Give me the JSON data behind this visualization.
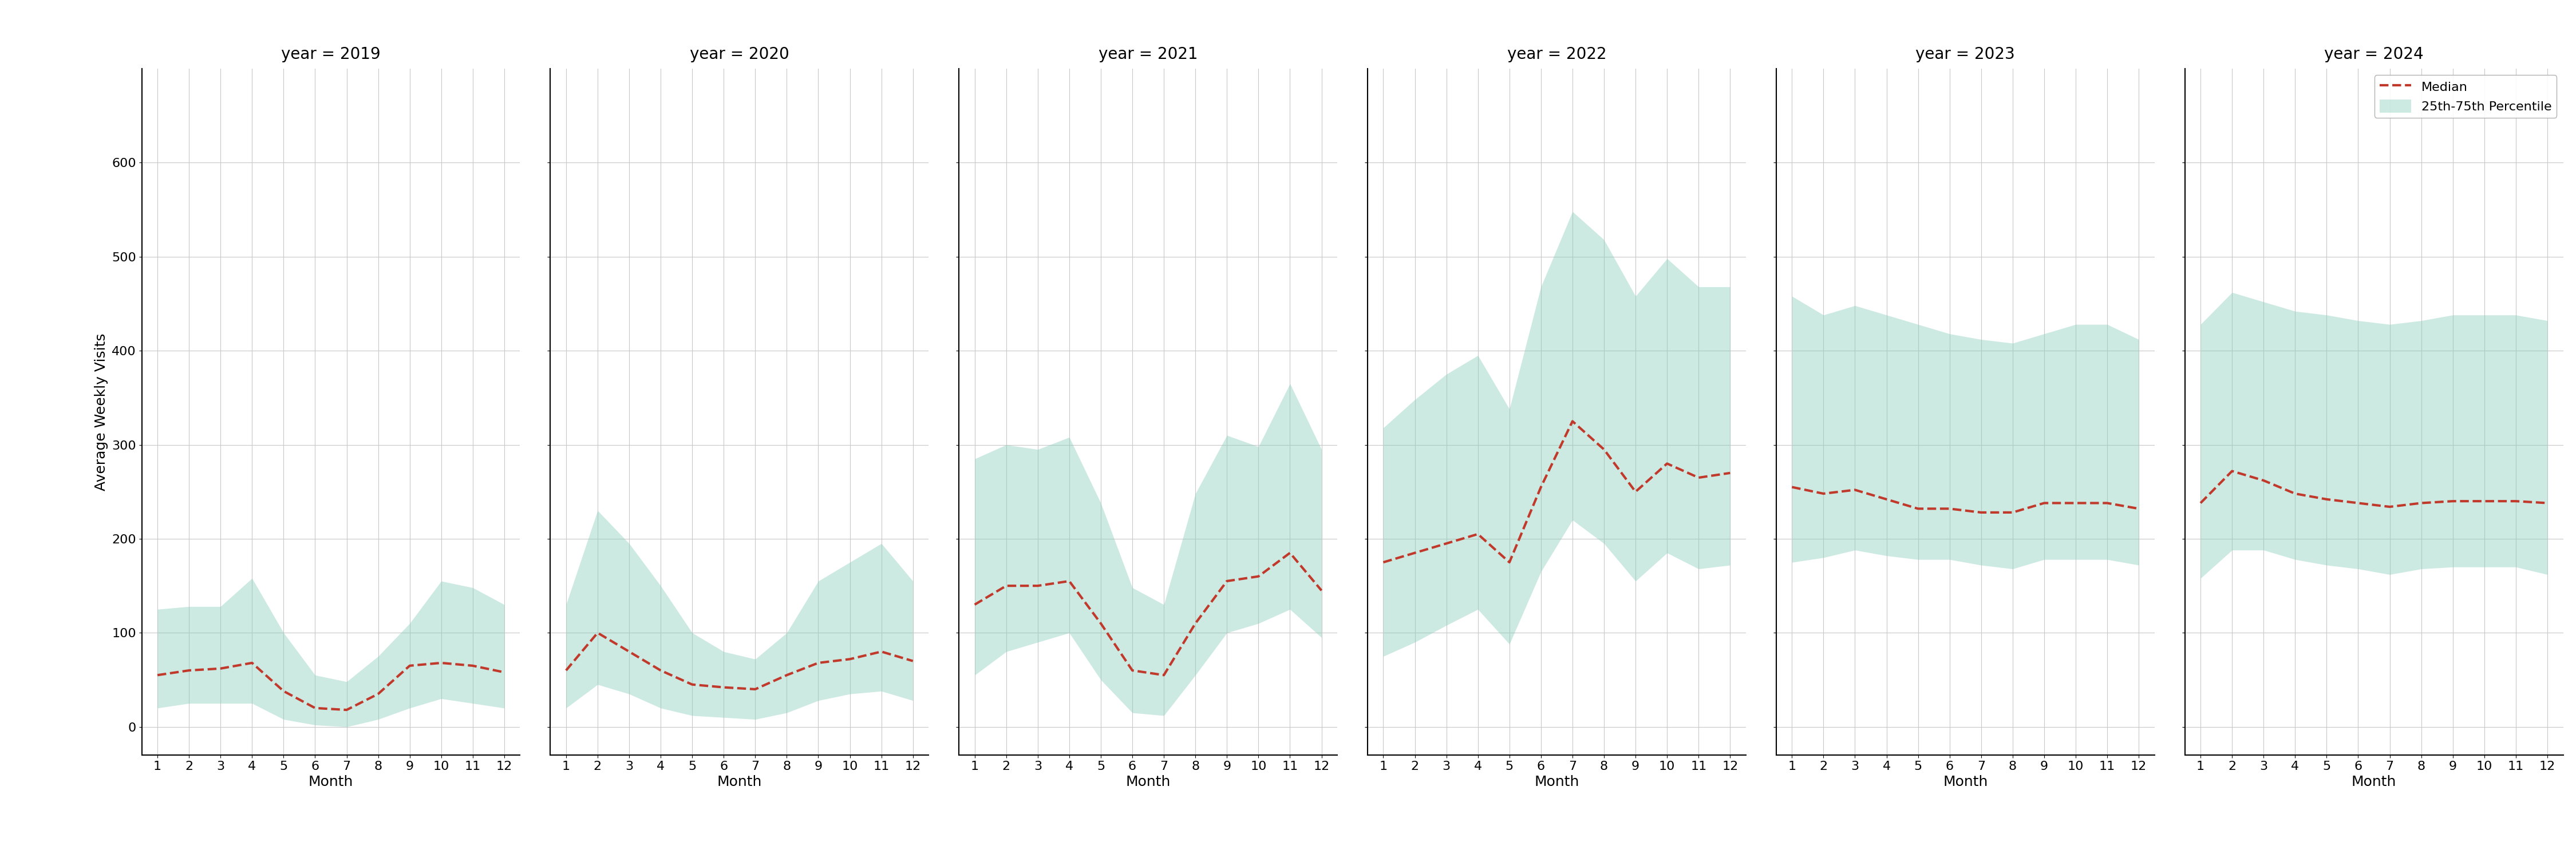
{
  "years": [
    2019,
    2020,
    2021,
    2022,
    2023,
    2024
  ],
  "months": [
    1,
    2,
    3,
    4,
    5,
    6,
    7,
    8,
    9,
    10,
    11,
    12
  ],
  "ylabel": "Average Weekly Visits",
  "xlabel": "Month",
  "ylim": [
    -30,
    700
  ],
  "yticks": [
    0,
    100,
    200,
    300,
    400,
    500,
    600
  ],
  "fill_color": "#8ecfbf",
  "fill_alpha": 0.45,
  "line_color": "#c0392b",
  "line_style": "--",
  "line_width": 3.0,
  "legend_median": "Median",
  "legend_band": "25th-75th Percentile",
  "title_fontsize": 20,
  "axis_fontsize": 18,
  "tick_fontsize": 16,
  "legend_fontsize": 16,
  "median": {
    "2019": [
      55,
      60,
      62,
      68,
      38,
      20,
      18,
      35,
      65,
      68,
      65,
      58
    ],
    "2020": [
      60,
      100,
      80,
      60,
      45,
      42,
      40,
      55,
      68,
      72,
      80,
      70
    ],
    "2021": [
      130,
      150,
      150,
      155,
      110,
      60,
      55,
      110,
      155,
      160,
      185,
      145
    ],
    "2022": [
      175,
      185,
      195,
      205,
      175,
      255,
      325,
      295,
      250,
      280,
      265,
      270
    ],
    "2023": [
      255,
      248,
      252,
      242,
      232,
      232,
      228,
      228,
      238,
      238,
      238,
      232
    ],
    "2024": [
      238,
      272,
      262,
      248,
      242,
      238,
      234,
      238,
      240,
      240,
      240,
      238
    ]
  },
  "q25": {
    "2019": [
      20,
      25,
      25,
      25,
      8,
      2,
      0,
      8,
      20,
      30,
      25,
      20
    ],
    "2020": [
      20,
      45,
      35,
      20,
      12,
      10,
      8,
      15,
      28,
      35,
      38,
      28
    ],
    "2021": [
      55,
      80,
      90,
      100,
      50,
      15,
      12,
      55,
      100,
      110,
      125,
      95
    ],
    "2022": [
      75,
      90,
      108,
      125,
      88,
      165,
      220,
      195,
      155,
      185,
      168,
      172
    ],
    "2023": [
      175,
      180,
      188,
      182,
      178,
      178,
      172,
      168,
      178,
      178,
      178,
      172
    ],
    "2024": [
      158,
      188,
      188,
      178,
      172,
      168,
      162,
      168,
      170,
      170,
      170,
      162
    ]
  },
  "q75": {
    "2019": [
      125,
      128,
      128,
      158,
      100,
      55,
      48,
      75,
      110,
      155,
      148,
      130
    ],
    "2020": [
      130,
      230,
      195,
      150,
      100,
      80,
      72,
      100,
      155,
      175,
      195,
      155
    ],
    "2021": [
      285,
      300,
      295,
      308,
      238,
      148,
      130,
      248,
      310,
      298,
      365,
      295
    ],
    "2022": [
      318,
      348,
      375,
      395,
      338,
      468,
      548,
      518,
      458,
      498,
      468,
      468
    ],
    "2023": [
      458,
      438,
      448,
      438,
      428,
      418,
      412,
      408,
      418,
      428,
      428,
      412
    ],
    "2024": [
      428,
      462,
      452,
      442,
      438,
      432,
      428,
      432,
      438,
      438,
      438,
      432
    ]
  }
}
